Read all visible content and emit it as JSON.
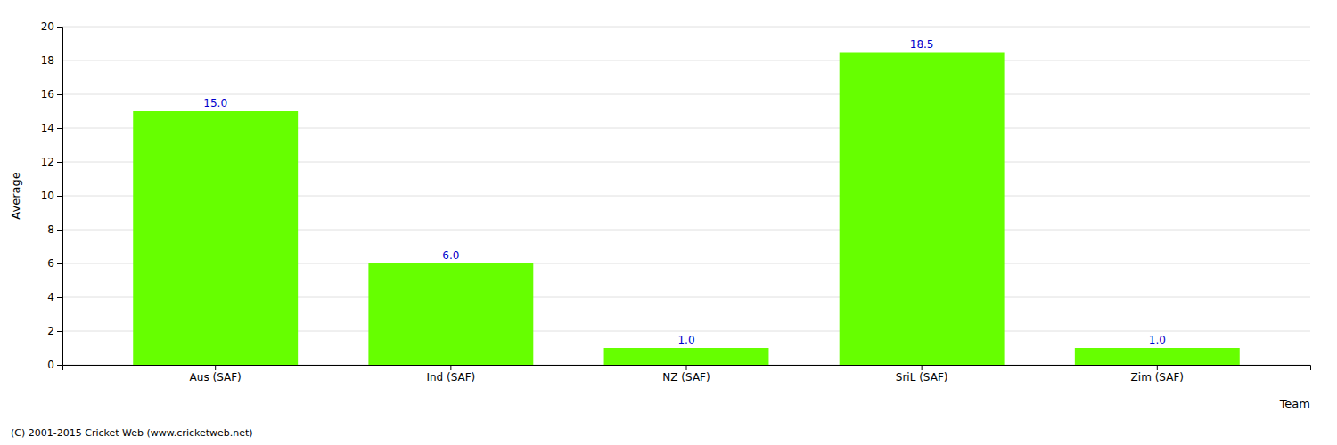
{
  "chart_data": {
    "type": "bar",
    "categories": [
      "Aus (SAF)",
      "Ind (SAF)",
      "NZ (SAF)",
      "SriL (SAF)",
      "Zim (SAF)"
    ],
    "values": [
      15.0,
      6.0,
      1.0,
      18.5,
      1.0
    ],
    "value_labels": [
      "15.0",
      "6.0",
      "1.0",
      "18.5",
      "1.0"
    ],
    "color": "#66ff00",
    "xlabel": "Team",
    "ylabel": "Average",
    "ylim": [
      0,
      20
    ],
    "yticks": [
      0,
      2,
      4,
      6,
      8,
      10,
      12,
      14,
      16,
      18,
      20
    ],
    "grid": true,
    "data_labels": true,
    "annotations": [
      "(C) 2001-2015 Cricket Web (www.cricketweb.net)"
    ]
  }
}
